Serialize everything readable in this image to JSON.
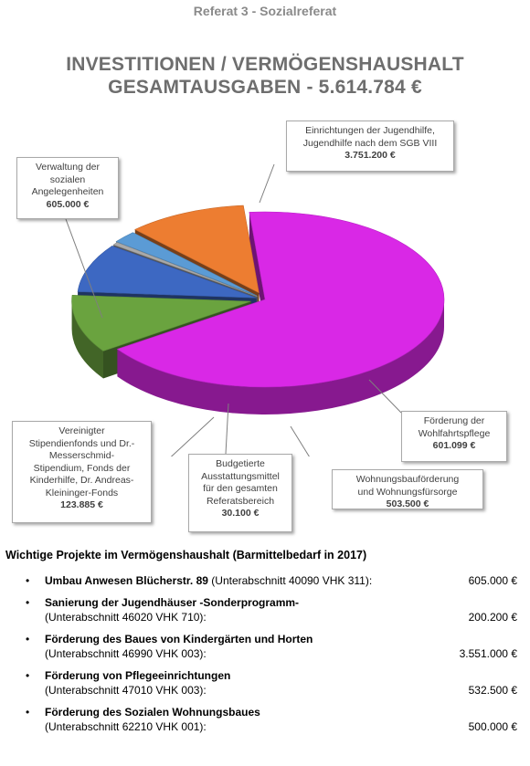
{
  "header": "Referat 3  -  Sozialreferat",
  "title_line1": "INVESTITIONEN / VERMÖGENSHAUSHALT",
  "title_line2": "GESAMTAUSGABEN - 5.614.784 €",
  "chart_data": {
    "type": "pie",
    "title": "INVESTITIONEN / VERMÖGENSHAUSHALT GESAMTAUSGABEN - 5.614.784 €",
    "slices": [
      {
        "label": "Einrichtungen der Jugendhilfe, Jugendhilfe nach dem SGB VIII",
        "value": 3751200,
        "value_label": "3.751.200 €",
        "color": "#d928e6"
      },
      {
        "label": "Förderung der Wohlfahrtspflege",
        "value": 601099,
        "value_label": "601.099 €",
        "color": "#6aa33f"
      },
      {
        "label": "Wohnungsbauförderung und Wohnungsfürsorge",
        "value": 503500,
        "value_label": "503.500 €",
        "color": "#3d68c2"
      },
      {
        "label": "Budgetierte Ausstattungsmittel für den gesamten Referatsbereich",
        "value": 30100,
        "value_label": "30.100 €",
        "color": "#a9a9a9"
      },
      {
        "label": "Vereinigter Stipendienfonds und Dr.-Messerschmid-Stipendium, Fonds der Kinderhilfe, Dr. Andreas-Kleininger-Fonds",
        "value": 123885,
        "value_label": "123.885 €",
        "color": "#5b9bd5"
      },
      {
        "label": "Verwaltung der sozialen Angelegenheiten",
        "value": 605000,
        "value_label": "605.000 €",
        "color": "#ed7d31"
      }
    ]
  },
  "callouts": {
    "jugendhilfe": {
      "lines": [
        "Einrichtungen der Jugendhilfe,",
        "Jugendhilfe nach dem SGB VIII"
      ],
      "value": "3.751.200 €"
    },
    "verwaltung": {
      "lines": [
        "Verwaltung der",
        "sozialen",
        "Angelegenheiten"
      ],
      "value": "605.000 €"
    },
    "wohlfahrt": {
      "lines": [
        "Förderung der",
        "Wohlfahrtspflege"
      ],
      "value": "601.099 €"
    },
    "wohnungsbau": {
      "lines": [
        "Wohnungsbauförderung",
        "und Wohnungsfürsorge"
      ],
      "value": "503.500 €"
    },
    "budget": {
      "lines": [
        "Budgetierte",
        "Ausstattungsmittel",
        "für den gesamten",
        "Referatsbereich"
      ],
      "value": "30.100 €"
    },
    "stipendien": {
      "lines": [
        "Vereinigter",
        "Stipendienfonds und Dr.-",
        "Messerschmid-",
        "Stipendium, Fonds der",
        "Kinderhilfe, Dr. Andreas-",
        "Kleininger-Fonds"
      ],
      "value": "123.885 €"
    }
  },
  "section_title": "Wichtige Projekte im Vermögenshaushalt (Barmittelbedarf in 2017)",
  "bullet": "•",
  "projects": [
    {
      "name": "Umbau Anwesen Blücherstr. 89",
      "detail": " (Unterabschnitt 40090 VHK 311):",
      "amount": "605.000 €",
      "inline": true
    },
    {
      "name": "Sanierung der Jugendhäuser -Sonderprogramm-",
      "detail": "(Unterabschnitt 46020 VHK 710):",
      "amount": "200.200 €",
      "inline": false
    },
    {
      "name": "Förderung des Baues von Kindergärten und Horten",
      "detail": "(Unterabschnitt 46990 VHK 003):",
      "amount": "3.551.000 €",
      "inline": false
    },
    {
      "name": "Förderung von Pflegeeinrichtungen",
      "detail": "(Unterabschnitt 47010 VHK 003):",
      "amount": "532.500 €",
      "inline": false
    },
    {
      "name": "Förderung des Sozialen Wohnungsbaues",
      "detail": "(Unterabschnitt 62210 VHK 001):",
      "amount": "500.000 €",
      "inline": false
    }
  ]
}
